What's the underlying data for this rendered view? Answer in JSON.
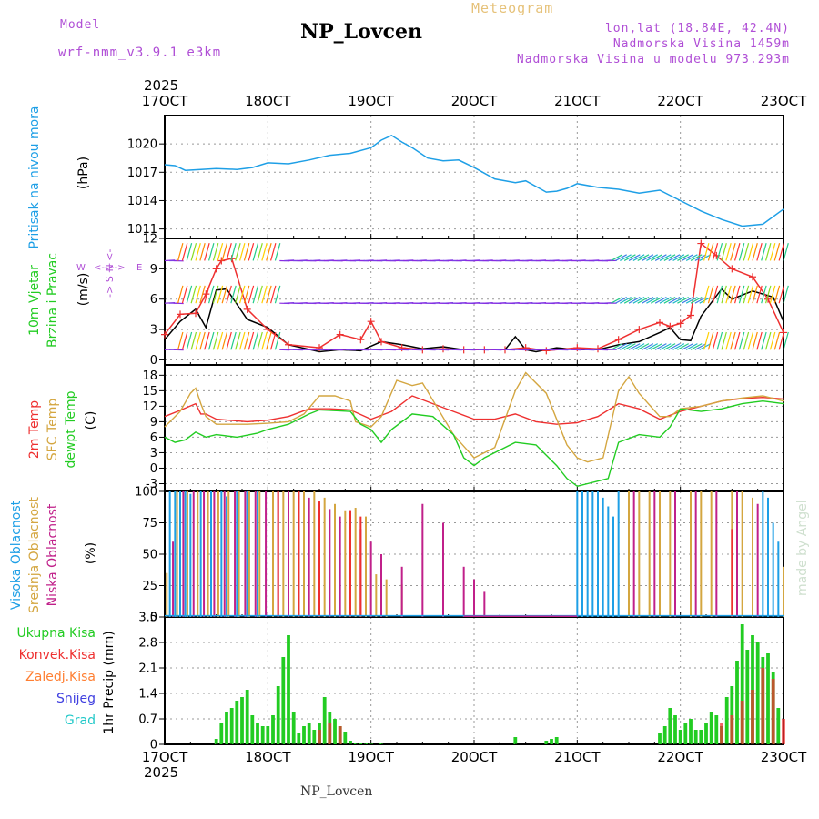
{
  "header": {
    "model_label": "Model",
    "model_name": "wrf-nmm_v3.9.1  e3km",
    "title": "NP_Lovcen",
    "meteogram_label": "Meteogram",
    "lonlat": "lon,lat (18.84E, 42.4N)",
    "elevation": "Nadmorska Visina 1459m",
    "model_elevation": "Nadmorska Visina u modelu 973.293m",
    "footer_title": "NP_Lovcen",
    "credit": "made by Angel"
  },
  "colors": {
    "purple": "#b04fd6",
    "gold": "#e6c27a",
    "blue": "#1e9fe6",
    "red": "#ee3030",
    "green": "#22cc22",
    "tan": "#d4a640",
    "magenta": "#c0208a",
    "orange": "#ff7f32",
    "snow": "#4040e0",
    "hail": "#20c8c8"
  },
  "time_axis": {
    "year": "2025",
    "ticks": [
      "17OCT",
      "18OCT",
      "19OCT",
      "20OCT",
      "21OCT",
      "22OCT",
      "23OCT"
    ]
  },
  "chart_data": [
    {
      "id": "pressure",
      "type": "line",
      "labels": [
        "Pritisak na nivou mora",
        "(hPa)"
      ],
      "ylim": [
        1010,
        1023
      ],
      "yticks": [
        1011,
        1014,
        1017,
        1020
      ],
      "series": [
        {
          "name": "MSLP",
          "color": "#1e9fe6",
          "x": [
            0,
            0.1,
            0.2,
            0.35,
            0.5,
            0.7,
            0.85,
            1.0,
            1.2,
            1.4,
            1.6,
            1.8,
            2.0,
            2.1,
            2.2,
            2.3,
            2.4,
            2.55,
            2.7,
            2.85,
            3.0,
            3.2,
            3.4,
            3.5,
            3.6,
            3.7,
            3.8,
            3.9,
            4.0,
            4.2,
            4.4,
            4.6,
            4.8,
            5.0,
            5.2,
            5.4,
            5.6,
            5.8,
            6.0
          ],
          "values": [
            1017.8,
            1017.7,
            1017.2,
            1017.3,
            1017.4,
            1017.3,
            1017.5,
            1018.0,
            1017.9,
            1018.3,
            1018.8,
            1019.0,
            1019.6,
            1020.4,
            1020.9,
            1020.2,
            1019.6,
            1018.5,
            1018.2,
            1018.3,
            1017.5,
            1016.3,
            1015.9,
            1016.1,
            1015.5,
            1014.9,
            1015.0,
            1015.3,
            1015.8,
            1015.4,
            1015.2,
            1014.8,
            1015.1,
            1014.0,
            1012.9,
            1012.0,
            1011.3,
            1011.5,
            1013.1
          ]
        }
      ]
    },
    {
      "id": "wind",
      "type": "line",
      "labels": [
        "10m Vjetar",
        "Brzina i Pravac",
        "(m/s)"
      ],
      "compass": [
        "N",
        "W",
        "E",
        "S"
      ],
      "ylim": [
        -0.5,
        12
      ],
      "yticks": [
        0,
        3,
        6,
        9,
        12
      ],
      "series": [
        {
          "name": "speed",
          "color": "#000000",
          "x": [
            0,
            0.15,
            0.3,
            0.4,
            0.5,
            0.6,
            0.8,
            1.0,
            1.2,
            1.5,
            1.7,
            1.9,
            2.1,
            2.3,
            2.5,
            2.7,
            2.9,
            3.1,
            3.3,
            3.4,
            3.5,
            3.6,
            3.8,
            4.0,
            4.2,
            4.4,
            4.6,
            4.8,
            4.9,
            5.0,
            5.1,
            5.2,
            5.4,
            5.5,
            5.7,
            5.9,
            6.0
          ],
          "values": [
            2.0,
            3.8,
            5.0,
            3.2,
            6.9,
            7.0,
            4.0,
            3.2,
            1.5,
            0.8,
            1.0,
            0.9,
            1.8,
            1.5,
            1.1,
            1.3,
            1.0,
            1.0,
            1.0,
            2.3,
            1.0,
            0.8,
            1.2,
            1.0,
            1.0,
            1.5,
            1.8,
            2.7,
            3.2,
            2.0,
            1.9,
            4.3,
            7.0,
            6.0,
            6.8,
            6.2,
            3.8
          ]
        },
        {
          "name": "gust",
          "color": "#ee3030",
          "x": [
            0,
            0.15,
            0.3,
            0.4,
            0.5,
            0.55,
            0.65,
            0.8,
            1.0,
            1.2,
            1.5,
            1.7,
            1.9,
            2.0,
            2.1,
            2.3,
            2.5,
            2.7,
            2.9,
            3.1,
            3.3,
            3.5,
            3.7,
            4.0,
            4.2,
            4.4,
            4.6,
            4.8,
            4.9,
            5.0,
            5.1,
            5.2,
            5.35,
            5.5,
            5.7,
            5.85,
            6.0
          ],
          "values": [
            2.5,
            4.5,
            4.6,
            6.5,
            9.0,
            9.8,
            10.0,
            5.0,
            3.0,
            1.5,
            1.2,
            2.5,
            2.0,
            3.8,
            1.8,
            1.2,
            1.0,
            1.1,
            1.0,
            1.0,
            1.0,
            1.2,
            0.9,
            1.2,
            1.1,
            2.0,
            3.0,
            3.7,
            3.3,
            3.6,
            4.4,
            11.5,
            10.3,
            9.0,
            8.2,
            6.0,
            2.7
          ]
        }
      ]
    },
    {
      "id": "temperature",
      "type": "line",
      "labels": [
        "2m Temp",
        "SFC Temp",
        "dewpt Temp",
        "(C)"
      ],
      "ylim": [
        -4.5,
        20
      ],
      "yticks": [
        -3,
        0,
        3,
        6,
        9,
        12,
        15,
        18
      ],
      "series": [
        {
          "name": "2m Temp",
          "color": "#ee3030",
          "x": [
            0,
            0.15,
            0.3,
            0.35,
            0.4,
            0.5,
            0.8,
            1.0,
            1.2,
            1.4,
            1.6,
            1.8,
            2.0,
            2.2,
            2.4,
            2.6,
            2.8,
            3.0,
            3.2,
            3.4,
            3.6,
            3.8,
            4.0,
            4.2,
            4.4,
            4.6,
            4.8,
            5.0,
            5.2,
            5.4,
            5.6,
            5.8,
            6.0
          ],
          "values": [
            10.0,
            11.2,
            12.5,
            10.5,
            10.5,
            9.5,
            9.0,
            9.3,
            10.0,
            11.5,
            11.5,
            11.3,
            9.5,
            11.0,
            14.0,
            12.5,
            11.0,
            9.5,
            9.5,
            10.5,
            9.0,
            8.5,
            8.8,
            10.0,
            12.5,
            11.5,
            9.5,
            11.0,
            12.0,
            13.0,
            13.5,
            13.7,
            13.4
          ]
        },
        {
          "name": "SFC Temp",
          "color": "#d4a640",
          "x": [
            0,
            0.15,
            0.25,
            0.3,
            0.35,
            0.4,
            0.5,
            0.8,
            1.0,
            1.2,
            1.35,
            1.5,
            1.65,
            1.8,
            1.85,
            2.0,
            2.1,
            2.25,
            2.4,
            2.5,
            2.65,
            2.8,
            3.0,
            3.2,
            3.4,
            3.5,
            3.7,
            3.9,
            4.0,
            4.1,
            4.25,
            4.4,
            4.5,
            4.6,
            4.8,
            4.9,
            5.0,
            5.2,
            5.4,
            5.6,
            5.8,
            6.0
          ],
          "values": [
            8.0,
            11.0,
            14.5,
            15.5,
            12.5,
            10.0,
            8.5,
            8.5,
            8.7,
            9.0,
            10.5,
            14.0,
            14.0,
            13.0,
            9.0,
            8.0,
            10.0,
            17.0,
            16.0,
            16.5,
            11.5,
            6.5,
            2.0,
            4.0,
            15.0,
            18.5,
            14.5,
            4.5,
            2.0,
            1.2,
            2.0,
            15.0,
            17.7,
            14.5,
            10.0,
            10.0,
            11.5,
            12.0,
            13.0,
            13.6,
            14.0,
            13.0
          ]
        },
        {
          "name": "dewpt Temp",
          "color": "#22cc22",
          "x": [
            0,
            0.1,
            0.2,
            0.3,
            0.4,
            0.5,
            0.7,
            0.9,
            1.0,
            1.2,
            1.4,
            1.5,
            1.6,
            1.8,
            1.9,
            2.0,
            2.1,
            2.2,
            2.4,
            2.6,
            2.8,
            2.9,
            3.0,
            3.1,
            3.2,
            3.4,
            3.6,
            3.7,
            3.8,
            3.9,
            4.0,
            4.1,
            4.2,
            4.3,
            4.4,
            4.6,
            4.8,
            4.9,
            5.0,
            5.2,
            5.4,
            5.6,
            5.8,
            6.0
          ],
          "values": [
            6.0,
            5.0,
            5.5,
            7.0,
            6.0,
            6.5,
            6.0,
            6.8,
            7.5,
            8.5,
            10.5,
            11.3,
            11.2,
            11.0,
            8.5,
            7.5,
            5.0,
            7.5,
            10.5,
            10.0,
            6.5,
            2.0,
            0.5,
            2.0,
            3.0,
            5.0,
            4.5,
            2.5,
            0.5,
            -2.0,
            -3.5,
            -3.0,
            -2.5,
            -2.0,
            5.0,
            6.5,
            6.0,
            8.0,
            11.5,
            11.0,
            11.5,
            12.5,
            13.0,
            12.5
          ]
        }
      ]
    },
    {
      "id": "clouds",
      "type": "bar",
      "labels": [
        "Visoka Oblacnost",
        "Srednja Oblacnost",
        "Niska Oblacnost",
        "(%)"
      ],
      "ylim": [
        0,
        100
      ],
      "yticks": [
        0,
        25,
        50,
        75,
        100
      ],
      "series": [
        {
          "name": "Visoka",
          "color": "#1e9fe6",
          "x": [
            0.05,
            0.1,
            0.15,
            0.2,
            0.25,
            0.35,
            0.45,
            0.55,
            0.6,
            0.7,
            0.8,
            0.9,
            4.0,
            4.05,
            4.1,
            4.15,
            4.2,
            4.25,
            4.3,
            4.35,
            4.4,
            5.8,
            5.85,
            5.9,
            5.95
          ],
          "values": [
            100,
            100,
            100,
            100,
            98,
            100,
            100,
            100,
            96,
            100,
            100,
            100,
            100,
            100,
            100,
            100,
            100,
            95,
            88,
            80,
            100,
            100,
            95,
            75,
            60
          ]
        },
        {
          "name": "Srednja",
          "color": "#d4a640",
          "x": [
            0.02,
            0.12,
            0.22,
            0.32,
            0.42,
            0.52,
            0.62,
            0.72,
            0.82,
            0.92,
            1.05,
            1.15,
            1.25,
            1.35,
            1.45,
            1.55,
            1.65,
            1.75,
            1.85,
            1.95,
            2.05,
            2.15,
            2.3,
            4.5,
            4.6,
            4.7,
            4.8,
            4.9,
            5.1,
            5.2,
            5.3,
            5.5,
            5.6,
            5.7,
            6.0
          ],
          "values": [
            35,
            100,
            100,
            100,
            100,
            100,
            100,
            100,
            100,
            100,
            100,
            100,
            100,
            100,
            100,
            95,
            90,
            85,
            87,
            80,
            34,
            30,
            26,
            100,
            100,
            100,
            100,
            100,
            100,
            100,
            100,
            100,
            100,
            95,
            40
          ]
        },
        {
          "name": "Niska",
          "color": "#c0208a",
          "x": [
            0.08,
            0.18,
            0.28,
            0.38,
            0.48,
            0.58,
            0.68,
            0.78,
            0.88,
            0.98,
            1.1,
            1.2,
            1.3,
            1.4,
            1.5,
            1.6,
            1.7,
            1.8,
            1.9,
            2.0,
            2.1,
            2.3,
            2.5,
            2.7,
            2.9,
            3.0,
            3.1,
            4.55,
            4.75,
            4.95,
            5.15,
            5.35,
            5.55,
            5.75
          ],
          "values": [
            60,
            100,
            100,
            100,
            100,
            100,
            100,
            100,
            100,
            100,
            100,
            100,
            100,
            95,
            90,
            86,
            80,
            85,
            70,
            60,
            50,
            40,
            90,
            75,
            40,
            30,
            20,
            100,
            100,
            100,
            100,
            100,
            100,
            90
          ]
        },
        {
          "name": "Niska red",
          "color": "#ee3030",
          "x": [
            1.1,
            1.3,
            1.5,
            1.8,
            1.9,
            5.5
          ],
          "values": [
            100,
            100,
            92,
            85,
            80,
            70
          ]
        }
      ]
    },
    {
      "id": "precip",
      "type": "bar",
      "labels": [
        "Ukupna Kisa",
        "Konvek.Kisa",
        "Zaledj.Kisa",
        "Snijeg",
        "Grad",
        "1hr Precip (mm)"
      ],
      "ylim": [
        0,
        3.5
      ],
      "yticks": [
        0,
        0.7,
        1.4,
        2.1,
        2.8,
        3.5
      ],
      "series": [
        {
          "name": "Ukupna Kisa",
          "color": "#22cc22",
          "x": [
            0.5,
            0.55,
            0.6,
            0.65,
            0.7,
            0.75,
            0.8,
            0.85,
            0.9,
            0.95,
            1.0,
            1.05,
            1.1,
            1.15,
            1.2,
            1.25,
            1.3,
            1.35,
            1.4,
            1.45,
            1.5,
            1.55,
            1.6,
            1.65,
            1.7,
            1.75,
            1.8,
            1.85,
            1.9,
            1.95,
            2.0,
            2.1,
            3.4,
            3.7,
            3.75,
            3.8,
            4.8,
            4.85,
            4.9,
            4.95,
            5.0,
            5.05,
            5.1,
            5.15,
            5.2,
            5.25,
            5.3,
            5.35,
            5.4,
            5.45,
            5.5,
            5.55,
            5.6,
            5.65,
            5.7,
            5.75,
            5.8,
            5.85,
            5.9,
            5.95
          ],
          "values": [
            0.15,
            0.6,
            0.9,
            1.0,
            1.2,
            1.3,
            1.5,
            0.8,
            0.6,
            0.5,
            0.5,
            0.8,
            1.6,
            2.4,
            3.0,
            0.9,
            0.3,
            0.5,
            0.6,
            0.4,
            0.6,
            1.3,
            0.9,
            0.7,
            0.5,
            0.35,
            0.1,
            0.05,
            0.05,
            0.05,
            0.05,
            0.05,
            0.2,
            0.1,
            0.15,
            0.2,
            0.3,
            0.5,
            1.0,
            0.8,
            0.4,
            0.6,
            0.7,
            0.4,
            0.4,
            0.6,
            0.9,
            0.8,
            0.5,
            1.3,
            1.6,
            2.3,
            3.3,
            2.6,
            3.0,
            2.8,
            2.4,
            2.5,
            2.0,
            1.0
          ]
        },
        {
          "name": "Konvek.Kisa",
          "color": "#ee3030",
          "x": [
            1.5,
            1.6,
            1.7,
            5.4,
            5.5,
            5.6,
            5.7,
            5.8,
            5.9,
            6.0
          ],
          "values": [
            0.4,
            0.6,
            0.5,
            0.6,
            0.8,
            1.2,
            1.5,
            2.1,
            1.8,
            0.7
          ]
        }
      ]
    }
  ]
}
